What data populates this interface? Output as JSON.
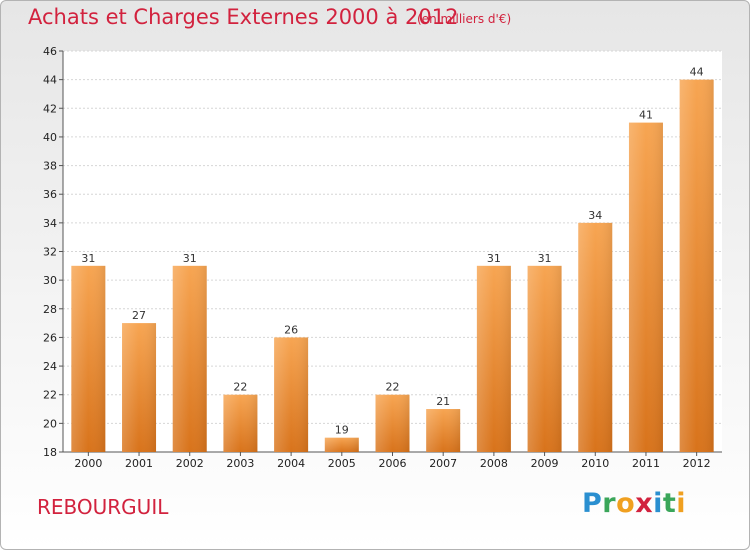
{
  "chart_data": {
    "type": "bar",
    "title": "Achats et Charges Externes 2000 à 2012",
    "subtitle": "(en milliers d'€)",
    "categories": [
      "2000",
      "2001",
      "2002",
      "2003",
      "2004",
      "2005",
      "2006",
      "2007",
      "2008",
      "2009",
      "2010",
      "2011",
      "2012"
    ],
    "values": [
      31,
      27,
      31,
      22,
      26,
      19,
      22,
      21,
      31,
      31,
      34,
      41,
      44
    ],
    "ylim": [
      18,
      46
    ],
    "yticks": [
      18,
      20,
      22,
      24,
      26,
      28,
      30,
      32,
      34,
      36,
      38,
      40,
      42,
      44,
      46
    ],
    "xlabel": "",
    "ylabel": "",
    "grid": true,
    "bar_color": "#f0913a"
  },
  "footer": {
    "location": "REBOURGUIL",
    "logo_letters": [
      {
        "ch": "P",
        "color": "#2a8fd0"
      },
      {
        "ch": "r",
        "color": "#3aa65a"
      },
      {
        "ch": "o",
        "color": "#f0a020"
      },
      {
        "ch": "x",
        "color": "#d2223e"
      },
      {
        "ch": "i",
        "color": "#2a8fd0"
      },
      {
        "ch": "t",
        "color": "#3aa65a"
      },
      {
        "ch": "i",
        "color": "#f0a020"
      }
    ]
  }
}
